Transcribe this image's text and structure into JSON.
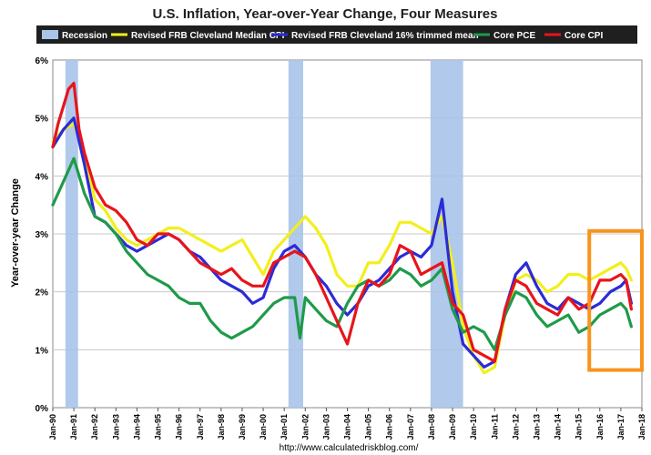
{
  "title": "U.S. Inflation, Year-over-Year Change, Four Measures",
  "source": "http://www.calculatedriskblog.com/",
  "colors": {
    "legend_bg": "#1f1f1f",
    "grid": "#c8c8c8",
    "recession": "#a9c3e8",
    "highlight_box": "#f7941d"
  },
  "chart_data": {
    "type": "line",
    "title": "U.S. Inflation, Year-over-Year Change, Four Measures",
    "xlabel": "",
    "ylabel": "Year-over-year Change",
    "xlim": [
      1990.0,
      2018.0
    ],
    "ylim": [
      0,
      6
    ],
    "y_ticks": [
      0,
      1,
      2,
      3,
      4,
      5,
      6
    ],
    "y_tick_labels": [
      "0%",
      "1%",
      "2%",
      "3%",
      "4%",
      "5%",
      "6%"
    ],
    "x_tick_labels": [
      "Jan-90",
      "Jan-91",
      "Jan-92",
      "Jan-93",
      "Jan-94",
      "Jan-95",
      "Jan-96",
      "Jan-97",
      "Jan-98",
      "Jan-99",
      "Jan-00",
      "Jan-01",
      "Jan-02",
      "Jan-03",
      "Jan-04",
      "Jan-05",
      "Jan-06",
      "Jan-07",
      "Jan-08",
      "Jan-09",
      "Jan-10",
      "Jan-11",
      "Jan-12",
      "Jan-13",
      "Jan-14",
      "Jan-15",
      "Jan-16",
      "Jan-17",
      "Jan-18"
    ],
    "grid": true,
    "legend_position": "top",
    "recessions": [
      {
        "label": "Recession",
        "start": 1990.6,
        "end": 1991.2
      },
      {
        "label": "Recession",
        "start": 2001.2,
        "end": 2001.9
      },
      {
        "label": "Recession",
        "start": 2007.95,
        "end": 2009.5
      }
    ],
    "legend": [
      {
        "name": "Recession",
        "color": "#a9c3e8",
        "kind": "box"
      },
      {
        "name": "Revised FRB Cleveland Median CPI",
        "color": "#f2ef1c",
        "kind": "line"
      },
      {
        "name": "Revised FRB Cleveland 16% trimmed mean",
        "color": "#2b2bd6",
        "kind": "line"
      },
      {
        "name": "Core PCE",
        "color": "#1f9a4a",
        "kind": "line"
      },
      {
        "name": "Core CPI",
        "color": "#e8141b",
        "kind": "line"
      }
    ],
    "series": [
      {
        "name": "Revised FRB Cleveland Median CPI",
        "color": "#f2ef1c",
        "x": [
          1990.0,
          1990.5,
          1991.0,
          1991.5,
          1992.0,
          1992.5,
          1993.0,
          1993.5,
          1994.0,
          1994.5,
          1995.0,
          1995.5,
          1996.0,
          1996.5,
          1997.0,
          1997.5,
          1998.0,
          1998.5,
          1999.0,
          1999.5,
          2000.0,
          2000.5,
          2001.0,
          2001.5,
          2002.0,
          2002.5,
          2003.0,
          2003.5,
          2004.0,
          2004.5,
          2005.0,
          2005.5,
          2006.0,
          2006.5,
          2007.0,
          2007.5,
          2008.0,
          2008.5,
          2009.0,
          2009.5,
          2010.0,
          2010.5,
          2011.0,
          2011.5,
          2012.0,
          2012.5,
          2013.0,
          2013.5,
          2014.0,
          2014.5,
          2015.0,
          2015.5,
          2016.0,
          2016.5,
          2017.0,
          2017.25,
          2017.5
        ],
        "y": [
          4.6,
          4.8,
          4.9,
          4.4,
          3.6,
          3.4,
          3.1,
          2.9,
          2.8,
          2.9,
          3.0,
          3.1,
          3.1,
          3.0,
          2.9,
          2.8,
          2.7,
          2.8,
          2.9,
          2.6,
          2.3,
          2.7,
          2.9,
          3.1,
          3.3,
          3.1,
          2.8,
          2.3,
          2.1,
          2.1,
          2.5,
          2.5,
          2.8,
          3.2,
          3.2,
          3.1,
          3.0,
          3.3,
          2.5,
          1.4,
          0.9,
          0.6,
          0.7,
          1.6,
          2.2,
          2.3,
          2.2,
          2.0,
          2.1,
          2.3,
          2.3,
          2.2,
          2.3,
          2.4,
          2.5,
          2.4,
          2.2
        ]
      },
      {
        "name": "Revised FRB Cleveland 16% trimmed mean",
        "color": "#2b2bd6",
        "x": [
          1990.0,
          1990.5,
          1991.0,
          1991.5,
          1992.0,
          1992.5,
          1993.0,
          1993.5,
          1994.0,
          1994.5,
          1995.0,
          1995.5,
          1996.0,
          1996.5,
          1997.0,
          1997.5,
          1998.0,
          1998.5,
          1999.0,
          1999.5,
          2000.0,
          2000.5,
          2001.0,
          2001.5,
          2002.0,
          2002.5,
          2003.0,
          2003.5,
          2004.0,
          2004.5,
          2005.0,
          2005.5,
          2006.0,
          2006.5,
          2007.0,
          2007.5,
          2008.0,
          2008.5,
          2009.0,
          2009.5,
          2010.0,
          2010.5,
          2011.0,
          2011.5,
          2012.0,
          2012.5,
          2013.0,
          2013.5,
          2014.0,
          2014.5,
          2015.0,
          2015.5,
          2016.0,
          2016.5,
          2017.0,
          2017.25,
          2017.5
        ],
        "y": [
          4.5,
          4.8,
          5.0,
          4.2,
          3.3,
          3.2,
          3.0,
          2.8,
          2.7,
          2.8,
          2.9,
          3.0,
          2.9,
          2.7,
          2.6,
          2.4,
          2.2,
          2.1,
          2.0,
          1.8,
          1.9,
          2.4,
          2.7,
          2.8,
          2.6,
          2.3,
          2.1,
          1.8,
          1.6,
          1.8,
          2.1,
          2.2,
          2.4,
          2.6,
          2.7,
          2.6,
          2.8,
          3.6,
          2.0,
          1.1,
          0.9,
          0.7,
          0.8,
          1.7,
          2.3,
          2.5,
          2.1,
          1.8,
          1.7,
          1.9,
          1.8,
          1.7,
          1.8,
          2.0,
          2.1,
          2.2,
          1.8
        ]
      },
      {
        "name": "Core PCE",
        "color": "#1f9a4a",
        "x": [
          1990.0,
          1990.5,
          1991.0,
          1991.5,
          1992.0,
          1992.5,
          1993.0,
          1993.5,
          1994.0,
          1994.5,
          1995.0,
          1995.5,
          1996.0,
          1996.5,
          1997.0,
          1997.5,
          1998.0,
          1998.5,
          1999.0,
          1999.5,
          2000.0,
          2000.5,
          2001.0,
          2001.5,
          2001.75,
          2002.0,
          2002.5,
          2003.0,
          2003.5,
          2004.0,
          2004.5,
          2005.0,
          2005.5,
          2006.0,
          2006.5,
          2007.0,
          2007.5,
          2008.0,
          2008.5,
          2009.0,
          2009.5,
          2010.0,
          2010.5,
          2011.0,
          2011.5,
          2012.0,
          2012.5,
          2013.0,
          2013.5,
          2014.0,
          2014.5,
          2015.0,
          2015.5,
          2016.0,
          2016.5,
          2017.0,
          2017.25,
          2017.5
        ],
        "y": [
          3.5,
          3.9,
          4.3,
          3.7,
          3.3,
          3.2,
          3.0,
          2.7,
          2.5,
          2.3,
          2.2,
          2.1,
          1.9,
          1.8,
          1.8,
          1.5,
          1.3,
          1.2,
          1.3,
          1.4,
          1.6,
          1.8,
          1.9,
          1.9,
          1.2,
          1.9,
          1.7,
          1.5,
          1.4,
          1.8,
          2.1,
          2.2,
          2.1,
          2.2,
          2.4,
          2.3,
          2.1,
          2.2,
          2.4,
          1.7,
          1.3,
          1.4,
          1.3,
          1.0,
          1.6,
          2.0,
          1.9,
          1.6,
          1.4,
          1.5,
          1.6,
          1.3,
          1.4,
          1.6,
          1.7,
          1.8,
          1.7,
          1.4
        ]
      },
      {
        "name": "Core CPI",
        "color": "#e8141b",
        "x": [
          1990.0,
          1990.25,
          1990.5,
          1990.75,
          1991.0,
          1991.25,
          1991.5,
          1992.0,
          1992.5,
          1993.0,
          1993.5,
          1994.0,
          1994.5,
          1995.0,
          1995.5,
          1996.0,
          1996.5,
          1997.0,
          1997.5,
          1998.0,
          1998.5,
          1999.0,
          1999.5,
          2000.0,
          2000.5,
          2001.0,
          2001.5,
          2002.0,
          2002.5,
          2003.0,
          2003.5,
          2004.0,
          2004.5,
          2005.0,
          2005.5,
          2006.0,
          2006.5,
          2007.0,
          2007.5,
          2008.0,
          2008.5,
          2009.0,
          2009.5,
          2010.0,
          2010.5,
          2011.0,
          2011.5,
          2012.0,
          2012.5,
          2013.0,
          2013.5,
          2014.0,
          2014.5,
          2015.0,
          2015.5,
          2016.0,
          2016.5,
          2017.0,
          2017.25,
          2017.5
        ],
        "y": [
          4.5,
          4.9,
          5.2,
          5.5,
          5.6,
          4.8,
          4.4,
          3.8,
          3.5,
          3.4,
          3.2,
          2.9,
          2.8,
          3.0,
          3.0,
          2.9,
          2.7,
          2.5,
          2.4,
          2.3,
          2.4,
          2.2,
          2.1,
          2.1,
          2.5,
          2.6,
          2.7,
          2.6,
          2.3,
          1.9,
          1.5,
          1.1,
          1.8,
          2.2,
          2.1,
          2.3,
          2.8,
          2.7,
          2.3,
          2.4,
          2.5,
          1.8,
          1.6,
          1.0,
          0.9,
          0.8,
          1.7,
          2.2,
          2.1,
          1.8,
          1.7,
          1.6,
          1.9,
          1.7,
          1.8,
          2.2,
          2.2,
          2.3,
          2.2,
          1.7
        ]
      }
    ],
    "annotations": [
      {
        "type": "highlight-box",
        "x_start": 2015.5,
        "x_end": 2018.0,
        "y_low": 0.65,
        "y_high": 3.05
      }
    ]
  }
}
